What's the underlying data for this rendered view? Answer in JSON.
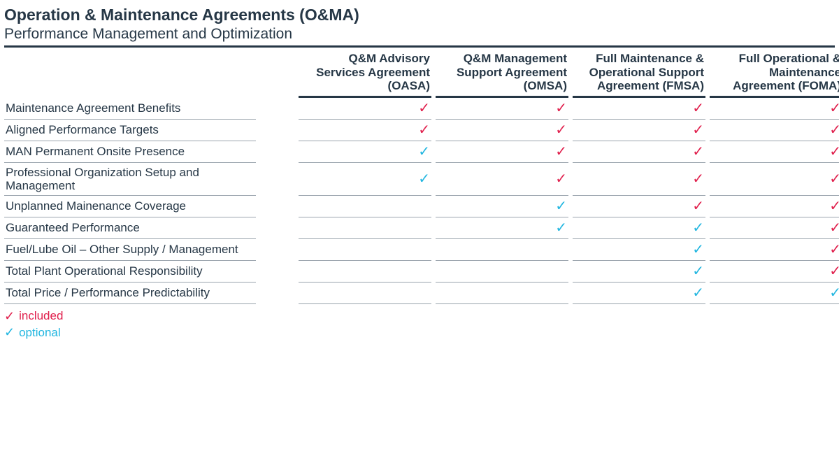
{
  "title": "Operation & Maintenance Agreements (O&MA)",
  "subtitle": "Performance Management and Optimization",
  "colors": {
    "text": "#263746",
    "border_heavy": "#263746",
    "border_light": "#9aa4ad",
    "included": "#e01f4c",
    "optional": "#21b6e0",
    "background": "#ffffff"
  },
  "columns": [
    {
      "line1": "Q&M Advisory",
      "line2": "Services Agreement",
      "line3": "(OASA)"
    },
    {
      "line1": "Q&M Management",
      "line2": "Support Agreement",
      "line3": "(OMSA)"
    },
    {
      "line1": "Full Maintenance &",
      "line2": "Operational Support",
      "line3": "Agreement (FMSA)"
    },
    {
      "line1": "Full Operational &",
      "line2": "Maintenance",
      "line3": "Agreement (FOMA)"
    }
  ],
  "rows": [
    {
      "label": "Maintenance Agreement Benefits",
      "cells": [
        "included",
        "included",
        "included",
        "included"
      ]
    },
    {
      "label": "Aligned Performance Targets",
      "cells": [
        "included",
        "included",
        "included",
        "included"
      ]
    },
    {
      "label": "MAN Permanent Onsite Presence",
      "cells": [
        "optional",
        "included",
        "included",
        "included"
      ]
    },
    {
      "label": "Professional Organization Setup and Management",
      "cells": [
        "optional",
        "included",
        "included",
        "included"
      ]
    },
    {
      "label": "Unplanned Mainenance Coverage",
      "cells": [
        "",
        "optional",
        "included",
        "included"
      ]
    },
    {
      "label": "Guaranteed Performance",
      "cells": [
        "",
        "optional",
        "optional",
        "included"
      ]
    },
    {
      "label": "Fuel/Lube Oil – Other Supply / Management",
      "cells": [
        "",
        "",
        "optional",
        "included"
      ]
    },
    {
      "label": "Total Plant Operational Responsibility",
      "cells": [
        "",
        "",
        "optional",
        "included"
      ]
    },
    {
      "label": "Total Price / Performance Predictability",
      "cells": [
        "",
        "",
        "optional",
        "optional"
      ]
    }
  ],
  "legend": {
    "included": "included",
    "optional": "optional"
  },
  "check_glyph": "✓"
}
